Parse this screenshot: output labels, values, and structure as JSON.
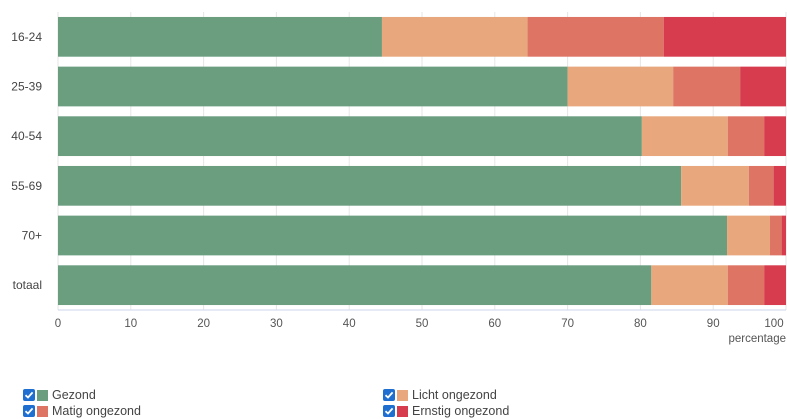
{
  "chart_data": {
    "type": "bar",
    "orientation": "horizontal",
    "stacked": true,
    "categories": [
      "16-24",
      "25-39",
      "40-54",
      "55-69",
      "70+",
      "totaal"
    ],
    "series": [
      {
        "name": "Gezond",
        "color": "#6a9e7f",
        "values": [
          44.5,
          70.0,
          80.2,
          85.6,
          91.9,
          81.5
        ]
      },
      {
        "name": "Licht ongezond",
        "color": "#e8a77c",
        "values": [
          20.0,
          14.5,
          11.8,
          9.3,
          5.9,
          10.5
        ]
      },
      {
        "name": "Matig ongezond",
        "color": "#de7564",
        "values": [
          18.7,
          9.2,
          5.0,
          3.4,
          1.6,
          5.0
        ]
      },
      {
        "name": "Ernstig ongezond",
        "color": "#d63c4e",
        "values": [
          16.8,
          6.3,
          3.0,
          1.7,
          0.6,
          3.0
        ]
      }
    ],
    "xlabel": "percentage",
    "xlim": [
      0,
      100
    ],
    "xticks": [
      0,
      10,
      20,
      30,
      40,
      50,
      60,
      70,
      80,
      90,
      100
    ],
    "grid": true,
    "legend_position": "bottom"
  },
  "legend": {
    "items": [
      {
        "label": "Gezond",
        "color": "#6a9e7f",
        "checked": true
      },
      {
        "label": "Licht ongezond",
        "color": "#e8a77c",
        "checked": true
      },
      {
        "label": "Matig ongezond",
        "color": "#de7564",
        "checked": true
      },
      {
        "label": "Ernstig ongezond",
        "color": "#d63c4e",
        "checked": true
      }
    ]
  }
}
